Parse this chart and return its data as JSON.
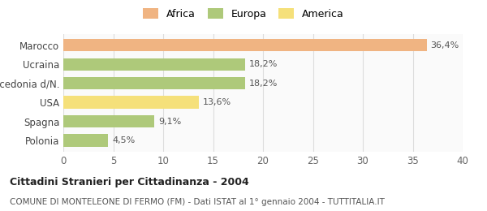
{
  "categories": [
    "Marocco",
    "Ucraina",
    "Macedonia d/N.",
    "USA",
    "Spagna",
    "Polonia"
  ],
  "values": [
    36.4,
    18.2,
    18.2,
    13.6,
    9.1,
    4.5
  ],
  "labels": [
    "36,4%",
    "18,2%",
    "18,2%",
    "13,6%",
    "9,1%",
    "4,5%"
  ],
  "colors": [
    "#f0b482",
    "#aec97a",
    "#aec97a",
    "#f5e07a",
    "#aec97a",
    "#aec97a"
  ],
  "legend": [
    {
      "label": "Africa",
      "color": "#f0b482"
    },
    {
      "label": "Europa",
      "color": "#aec97a"
    },
    {
      "label": "America",
      "color": "#f5e07a"
    }
  ],
  "xlim": [
    0,
    40
  ],
  "xticks": [
    0,
    5,
    10,
    15,
    20,
    25,
    30,
    35,
    40
  ],
  "title_bold": "Cittadini Stranieri per Cittadinanza - 2004",
  "subtitle": "COMUNE DI MONTELEONE DI FERMO (FM) - Dati ISTAT al 1° gennaio 2004 - TUTTITALIA.IT",
  "background_color": "#ffffff",
  "grid_color": "#dddddd",
  "label_fontsize": 8,
  "tick_fontsize": 8.5,
  "title_fontsize": 9,
  "subtitle_fontsize": 7.5
}
